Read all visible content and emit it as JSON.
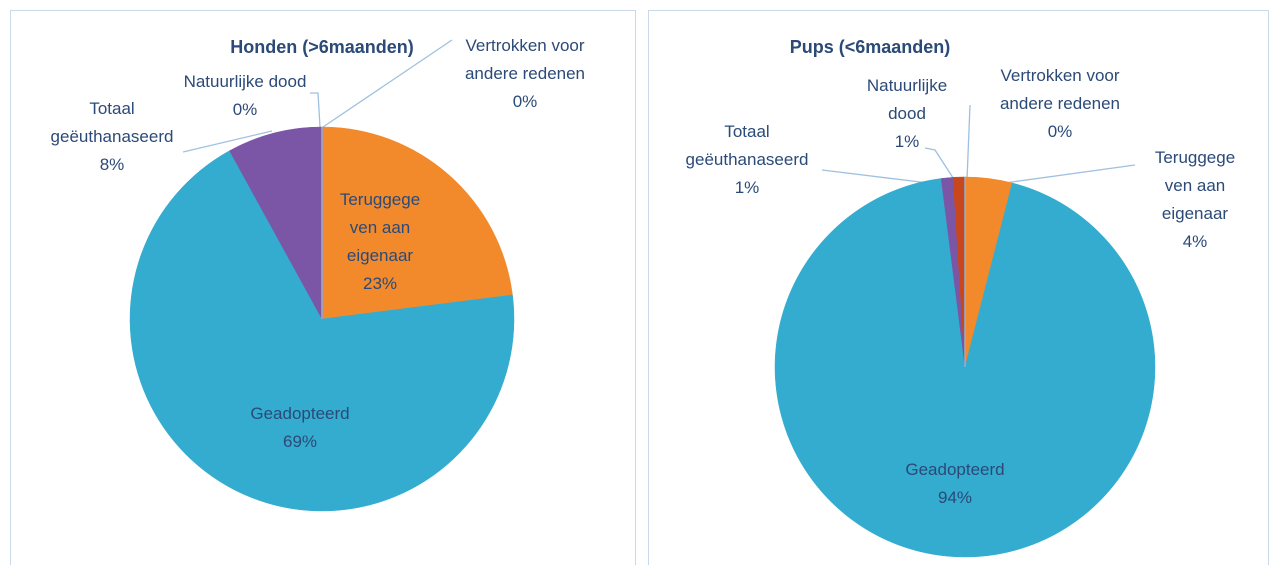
{
  "chart_data": [
    {
      "type": "pie",
      "title": "Honden (>6maanden)",
      "categories": [
        "Teruggegeven aan eigenaar",
        "Geadopteerd",
        "Totaal geëuthanaseerd",
        "Natuurlijke dood",
        "Vertrokken voor andere redenen"
      ],
      "values": [
        23,
        69,
        8,
        0,
        0
      ],
      "value_labels": [
        "23%",
        "69%",
        "8%",
        "0%",
        "0%"
      ],
      "colors": [
        "#f28a2c",
        "#33acd0",
        "#7b56a6",
        "#c9471c",
        "#8fb0d8"
      ]
    },
    {
      "type": "pie",
      "title": "Pups (<6maanden)",
      "categories": [
        "Teruggegeven aan eigenaar",
        "Geadopteerd",
        "Totaal geëuthanaseerd",
        "Natuurlijke dood",
        "Vertrokken voor andere redenen"
      ],
      "values": [
        4,
        94,
        1,
        1,
        0
      ],
      "value_labels": [
        "4%",
        "94%",
        "1%",
        "1%",
        "0%"
      ],
      "colors": [
        "#f28a2c",
        "#33acd0",
        "#7b56a6",
        "#c9471c",
        "#8fb0d8"
      ]
    }
  ]
}
